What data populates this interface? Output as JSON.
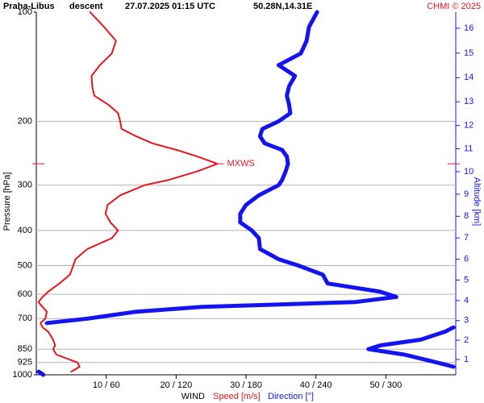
{
  "chart_data": {
    "type": "profile",
    "station": "Praha-Libus",
    "mode": "descent",
    "time": "27.07.2025 01:15 UTC",
    "location": "50.28N,14.31E",
    "credit": "CHMI © 2025",
    "ylabel": "Pressure [hPa]",
    "y2label": "Altitude [km]",
    "xlabel": "WIND",
    "log_y": true,
    "grid": true,
    "ylim": [
      100,
      1000
    ],
    "yticks": [
      100,
      200,
      300,
      400,
      500,
      600,
      700,
      850,
      925,
      1000
    ],
    "y2ticks": [
      1,
      2,
      3,
      4,
      5,
      6,
      7,
      8,
      9,
      10,
      11,
      12,
      13,
      14,
      15,
      16
    ],
    "xlim": [
      0,
      60
    ],
    "x2lim": [
      0,
      360
    ],
    "xticks": [
      {
        "value": 10,
        "label": "10 / 60"
      },
      {
        "value": 20,
        "label": "20 / 120"
      },
      {
        "value": 30,
        "label": "30 / 180"
      },
      {
        "value": 40,
        "label": "40 / 240"
      },
      {
        "value": 50,
        "label": "50 / 300"
      }
    ],
    "pressure": [
      100,
      110,
      120,
      130,
      140,
      150,
      160,
      170,
      180,
      190,
      200,
      210,
      220,
      230,
      240,
      250,
      262,
      275,
      290,
      300,
      320,
      340,
      360,
      380,
      400,
      420,
      450,
      480,
      500,
      530,
      560,
      590,
      610,
      630,
      650,
      670,
      700,
      720,
      740,
      760,
      800,
      830,
      850,
      880,
      925,
      950,
      980,
      1000
    ],
    "series": [
      {
        "name": "Speed [m/s]",
        "color": "#e8141e",
        "axis": "x",
        "values": [
          7.7,
          9.7,
          11.4,
          10.8,
          9.1,
          7.9,
          8.0,
          8.3,
          10.3,
          11.7,
          12.0,
          12.2,
          14.3,
          16.6,
          20.1,
          23.0,
          25.9,
          23.0,
          19.0,
          15.5,
          12.0,
          10.2,
          9.9,
          10.6,
          11.7,
          10.8,
          7.3,
          5.6,
          5.3,
          4.8,
          3.3,
          1.7,
          0.9,
          0.3,
          0.9,
          1.5,
          1.3,
          0.6,
          0.9,
          1.7,
          2.4,
          2.7,
          2.4,
          2.9,
          5.9,
          6.2,
          5.0,
          null
        ]
      },
      {
        "name": "Direction [°]",
        "color": "#1414f0",
        "axis": "x2",
        "values": [
          241,
          234,
          232,
          227,
          208,
          222,
          217,
          215,
          217,
          218,
          208,
          194,
          192,
          196,
          211,
          215,
          216,
          214,
          211,
          208,
          191,
          180,
          175,
          175,
          185,
          191,
          192,
          208,
          225,
          246,
          250,
          295,
          309,
          274,
          142,
          86,
          44,
          9,
          358,
          351,
          330,
          295,
          285,
          316,
          344,
          358,
          2,
          6
        ]
      }
    ],
    "annotation": {
      "label": "MXWS",
      "pressure": 262,
      "speed": 25.9
    }
  }
}
